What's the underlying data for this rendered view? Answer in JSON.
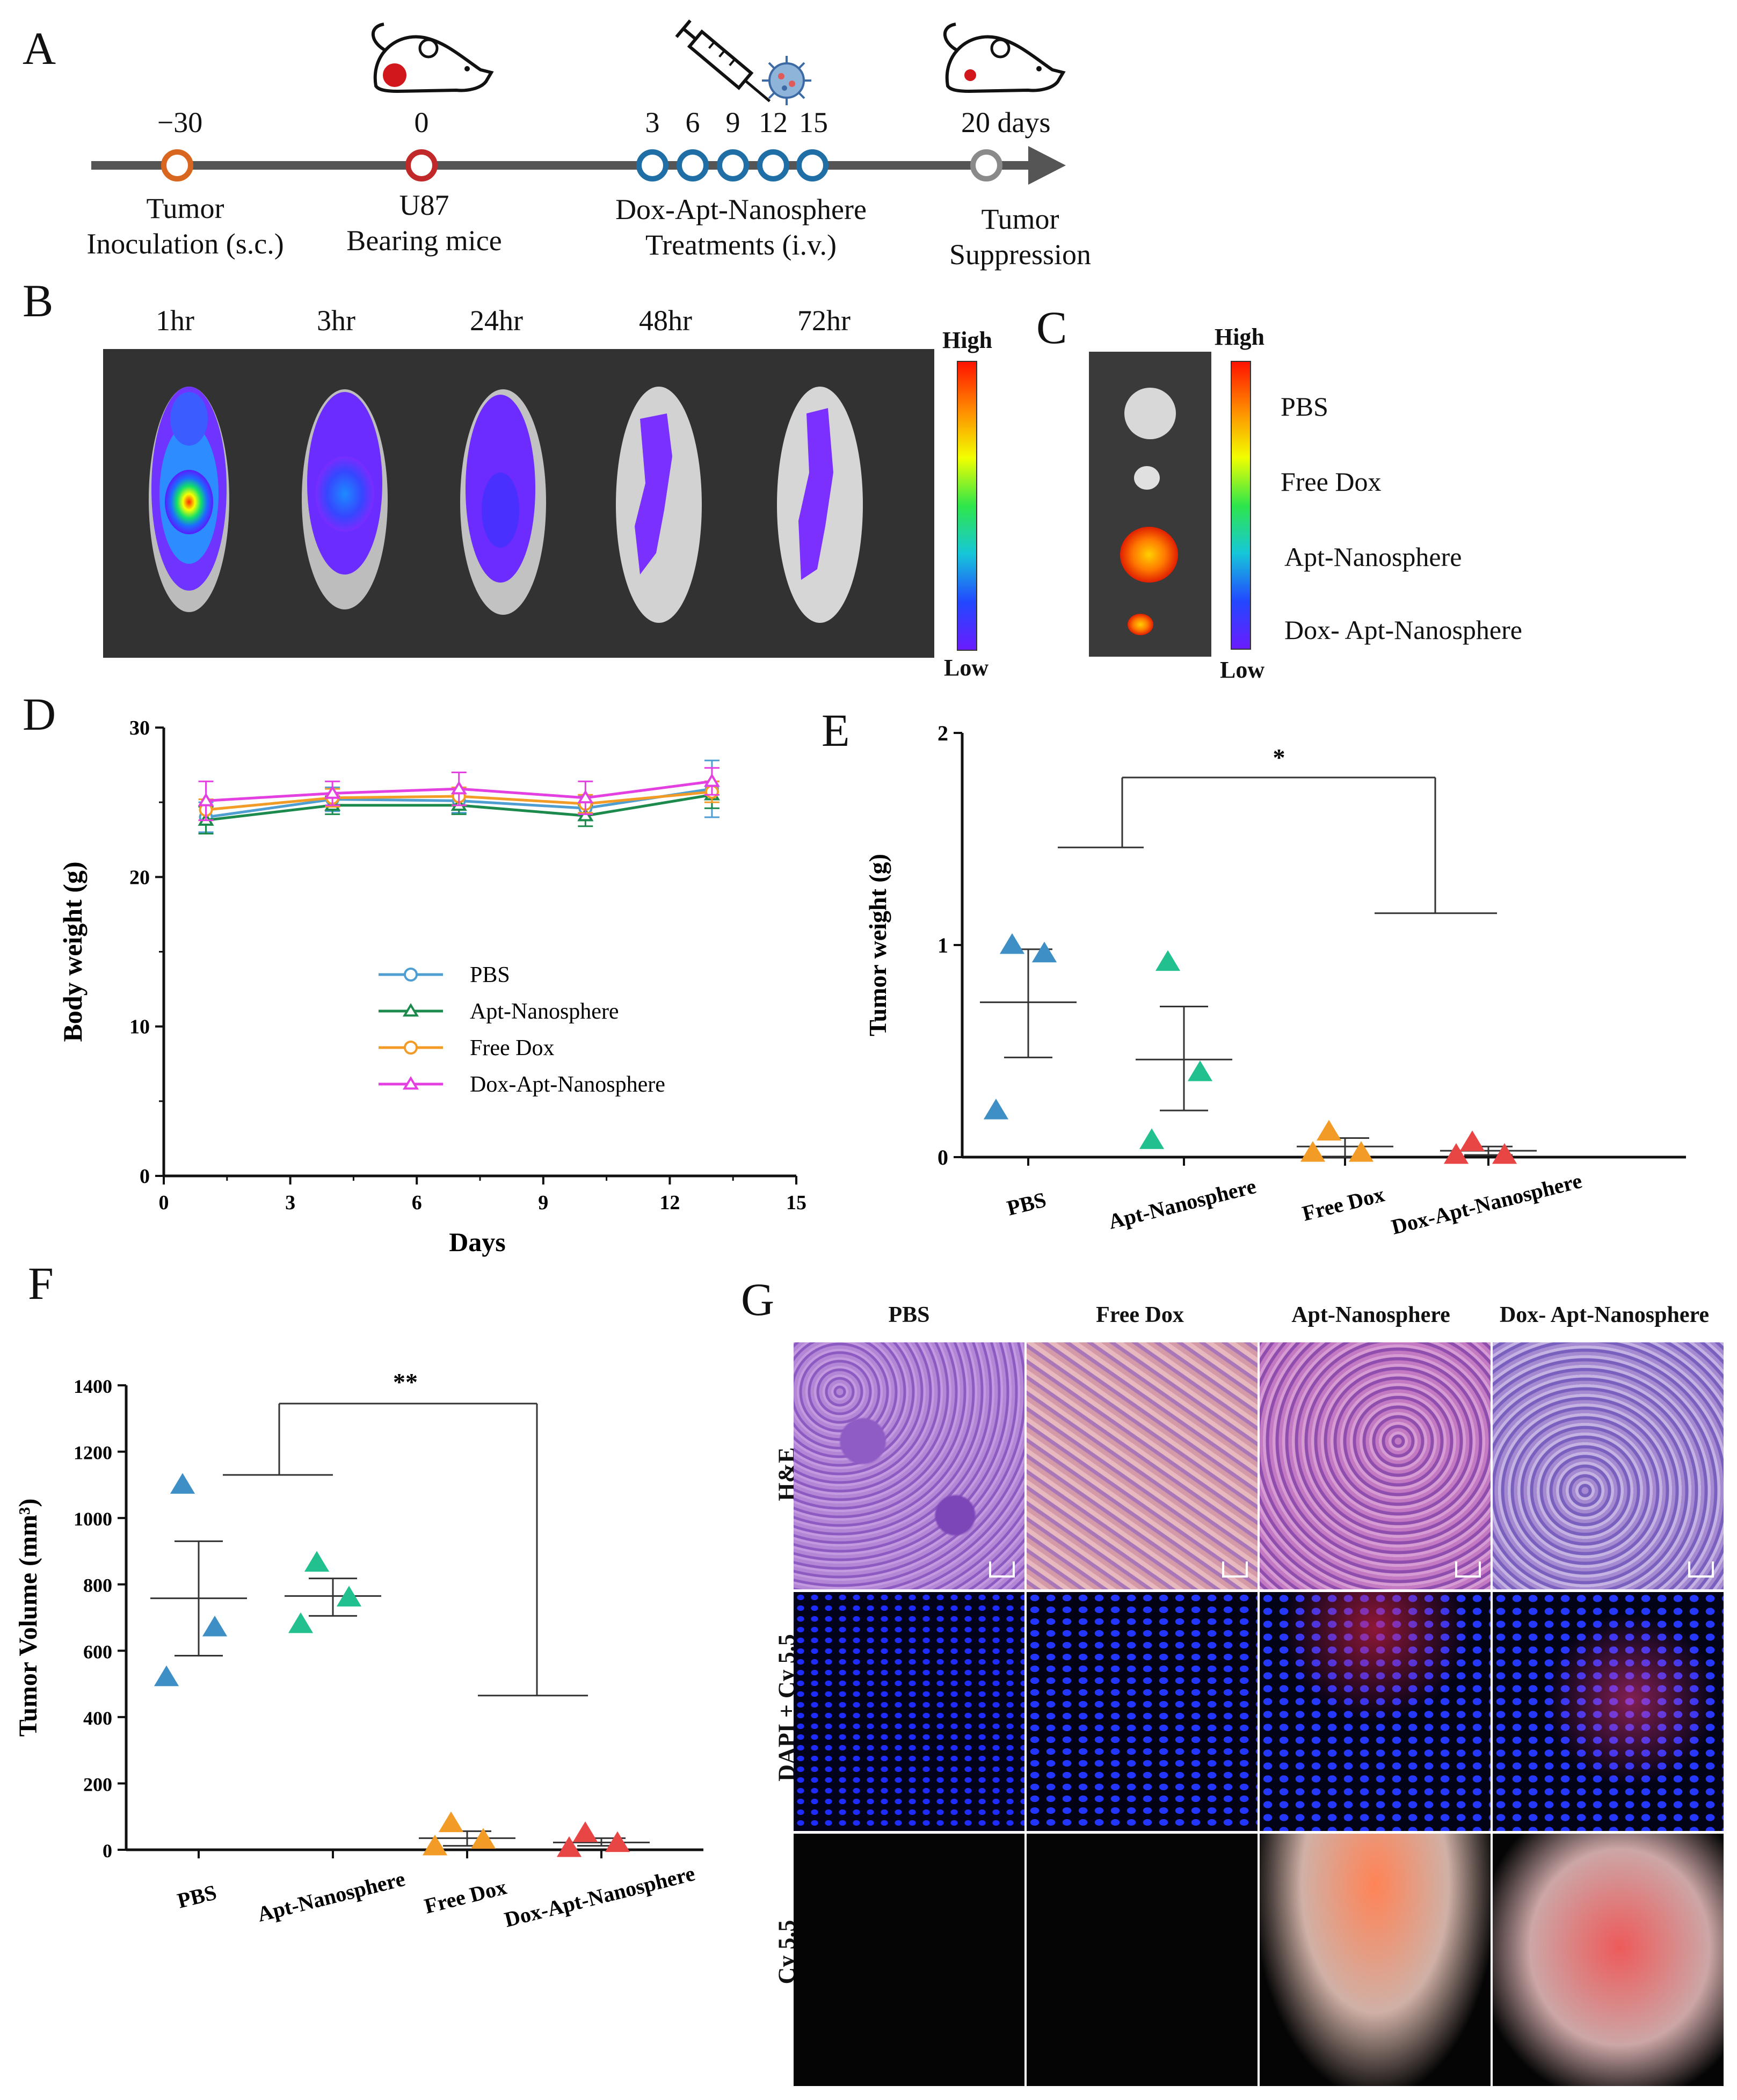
{
  "figure": {
    "panels": {
      "a": "A",
      "b": "B",
      "c": "C",
      "d": "D",
      "e": "E",
      "f": "F",
      "g": "G"
    }
  },
  "timeline": {
    "ticks": [
      "−30",
      "0",
      "3",
      "6",
      "9",
      "12",
      "15",
      "20 days"
    ],
    "event_tumor_line1": "Tumor",
    "event_tumor_line2": "Inoculation (s.c.)",
    "event_u87_line1": "U87",
    "event_u87_line2": "Bearing mice",
    "event_dox_line1": "Dox-Apt-Nanosphere",
    "event_dox_line2": "Treatments (i.v.)",
    "event_supp_line1": "Tumor",
    "event_supp_line2": "Suppression",
    "colors": {
      "inoculation": "#d9661f",
      "bearing": "#c0282a",
      "treatment": "#1f6ea5",
      "end": "#8a8a8a",
      "axis": "#555555"
    },
    "icons": [
      "mouse-icon",
      "mouse-with-tumor-icon",
      "syringe-icon",
      "nanoparticle-icon",
      "mouse-small-tumor-icon"
    ]
  },
  "imaging_b": {
    "timepoints": [
      "1hr",
      "3hr",
      "24hr",
      "48hr",
      "72hr"
    ],
    "scale_high": "High",
    "scale_low": "Low"
  },
  "imaging_c": {
    "scale_high": "High",
    "scale_low": "Low",
    "organs": [
      "PBS",
      "Free Dox",
      "Apt-Nanosphere",
      "Dox- Apt-Nanosphere"
    ]
  },
  "histology_g": {
    "columns": [
      "PBS",
      "Free Dox",
      "Apt-Nanosphere",
      "Dox- Apt-Nanosphere"
    ],
    "rows": [
      "H&E",
      "DAPI + Cy 5.5",
      "Cy 5.5"
    ]
  },
  "chart_data": [
    {
      "id": "D",
      "type": "line",
      "xlabel": "Days",
      "ylabel": "Body weight (g)",
      "xlim": [
        0,
        15
      ],
      "ylim": [
        0,
        30
      ],
      "xticks": [
        0,
        3,
        6,
        9,
        12,
        15
      ],
      "yticks": [
        0,
        10,
        20,
        30
      ],
      "x": [
        1,
        4,
        7,
        10,
        13
      ],
      "legend_position": "center",
      "series": [
        {
          "name": "PBS",
          "color": "#4f9ed1",
          "marker": "circle",
          "values": [
            24.0,
            25.2,
            25.1,
            24.6,
            25.9
          ],
          "err": [
            1.0,
            0.8,
            0.8,
            0.8,
            1.9
          ]
        },
        {
          "name": "Apt-Nanosphere",
          "color": "#1b8a4c",
          "marker": "triangle",
          "values": [
            23.8,
            24.8,
            24.8,
            24.1,
            25.5
          ],
          "err": [
            0.9,
            0.6,
            0.6,
            0.7,
            0.9
          ]
        },
        {
          "name": "Free Dox",
          "color": "#f29b26",
          "marker": "circle",
          "values": [
            24.5,
            25.3,
            25.4,
            24.9,
            25.7
          ],
          "err": [
            0.7,
            0.6,
            0.6,
            0.6,
            0.7
          ]
        },
        {
          "name": "Dox-Apt-Nanosphere",
          "color": "#e43fe0",
          "marker": "triangle",
          "values": [
            25.1,
            25.6,
            25.9,
            25.3,
            26.4
          ],
          "err": [
            1.3,
            0.8,
            1.1,
            1.1,
            0.9
          ]
        }
      ]
    },
    {
      "id": "E",
      "type": "scatter",
      "ylabel": "Tumor weight (g)",
      "categories": [
        "PBS",
        "Apt-Nanosphere",
        "Free Dox",
        "Dox-Apt-Nanosphere"
      ],
      "ylim": [
        0,
        2
      ],
      "yticks": [
        0,
        1,
        2
      ],
      "significance": "*",
      "groups": [
        {
          "name": "PBS",
          "color": "#3d8fc6",
          "points": [
            1.0,
            0.96,
            0.22
          ],
          "mean": 0.73,
          "sem_low": 0.47,
          "sem_high": 0.98
        },
        {
          "name": "Apt-Nanosphere",
          "color": "#22c08f",
          "points": [
            0.92,
            0.4,
            0.08
          ],
          "mean": 0.46,
          "sem_low": 0.22,
          "sem_high": 0.71
        },
        {
          "name": "Free Dox",
          "color": "#f29b26",
          "points": [
            0.12,
            0.02,
            0.02
          ],
          "mean": 0.05,
          "sem_low": 0.0,
          "sem_high": 0.09
        },
        {
          "name": "Dox-Apt-Nanosphere",
          "color": "#e84545",
          "points": [
            0.07,
            0.01,
            0.01
          ],
          "mean": 0.03,
          "sem_low": 0.01,
          "sem_high": 0.05
        }
      ]
    },
    {
      "id": "F",
      "type": "scatter",
      "ylabel": "Tumor Volume (mm³)",
      "categories": [
        "PBS",
        "Apt-Nanosphere",
        "Free Dox",
        "Dox-Apt-Nanosphere"
      ],
      "ylim": [
        0,
        1400
      ],
      "yticks": [
        0,
        200,
        400,
        600,
        800,
        1000,
        1200,
        1400
      ],
      "significance": "**",
      "groups": [
        {
          "name": "PBS",
          "color": "#3d8fc6",
          "points": [
            1100,
            670,
            520
          ],
          "mean": 758,
          "sem_low": 585,
          "sem_high": 930
        },
        {
          "name": "Apt-Nanosphere",
          "color": "#22c08f",
          "points": [
            865,
            760,
            680
          ],
          "mean": 765,
          "sem_low": 705,
          "sem_high": 818
        },
        {
          "name": "Free Dox",
          "color": "#f29b26",
          "points": [
            80,
            30,
            10
          ],
          "mean": 35,
          "sem_low": 12,
          "sem_high": 56
        },
        {
          "name": "Dox-Apt-Nanosphere",
          "color": "#e84545",
          "points": [
            50,
            20,
            5
          ],
          "mean": 22,
          "sem_low": 12,
          "sem_high": 35
        }
      ]
    }
  ]
}
